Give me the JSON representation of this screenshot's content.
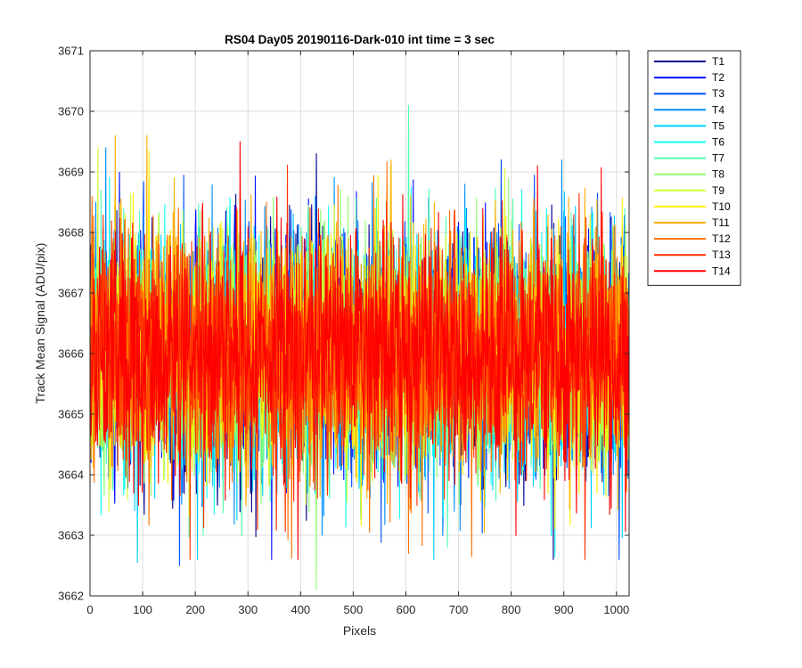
{
  "chart_data": {
    "type": "line",
    "title": "RS04 Day05 20190116-Dark-010 int time = 3 sec",
    "xlabel": "Pixels",
    "ylabel": "Track Mean Signal (ADU/pix)",
    "xlim": [
      0,
      1024
    ],
    "ylim": [
      3662,
      3671
    ],
    "xticks": [
      0,
      100,
      200,
      300,
      400,
      500,
      600,
      700,
      800,
      900,
      1000
    ],
    "yticks": [
      3662,
      3663,
      3664,
      3665,
      3666,
      3667,
      3668,
      3669,
      3670,
      3671
    ],
    "grid": true,
    "legend_position": "outside-top-right",
    "points_per_series": 1024,
    "series_statistics": {
      "mean_approx": 3666,
      "typical_min": 3663.5,
      "typical_max": 3668.5
    },
    "series": [
      {
        "name": "T1",
        "color": "#00008f",
        "noted_extremes": [
          {
            "x": 430,
            "y": 3669.3
          },
          {
            "x": 880,
            "y": 3662.6
          }
        ]
      },
      {
        "name": "T2",
        "color": "#0010ff",
        "noted_extremes": [
          {
            "x": 345,
            "y": 3662.6
          }
        ]
      },
      {
        "name": "T3",
        "color": "#0050ff",
        "noted_extremes": [
          {
            "x": 170,
            "y": 3662.5
          },
          {
            "x": 1005,
            "y": 3662.6
          }
        ]
      },
      {
        "name": "T4",
        "color": "#0090ff",
        "noted_extremes": [
          {
            "x": 30,
            "y": 3669.4
          }
        ]
      },
      {
        "name": "T5",
        "color": "#00cfff",
        "noted_extremes": [
          {
            "x": 90,
            "y": 3662.55
          }
        ]
      },
      {
        "name": "T6",
        "color": "#10ffef",
        "noted_extremes": []
      },
      {
        "name": "T7",
        "color": "#50ffaf",
        "noted_extremes": [
          {
            "x": 605,
            "y": 3670.1
          }
        ]
      },
      {
        "name": "T8",
        "color": "#8fff70",
        "noted_extremes": [
          {
            "x": 430,
            "y": 3662.1
          }
        ]
      },
      {
        "name": "T9",
        "color": "#cfff30",
        "noted_extremes": [
          {
            "x": 15,
            "y": 3669.4
          }
        ]
      },
      {
        "name": "T10",
        "color": "#ffef00",
        "noted_extremes": [
          {
            "x": 112,
            "y": 3669.35
          }
        ]
      },
      {
        "name": "T11",
        "color": "#ffaf00",
        "noted_extremes": [
          {
            "x": 108,
            "y": 3669.6
          },
          {
            "x": 48,
            "y": 3669.6
          }
        ]
      },
      {
        "name": "T12",
        "color": "#ff7000",
        "noted_extremes": [
          {
            "x": 605,
            "y": 3662.7
          },
          {
            "x": 725,
            "y": 3662.65
          }
        ]
      },
      {
        "name": "T13",
        "color": "#ff3000",
        "noted_extremes": []
      },
      {
        "name": "T14",
        "color": "#ff0000",
        "noted_extremes": [
          {
            "x": 285,
            "y": 3669.5
          },
          {
            "x": 850,
            "y": 3669.1
          }
        ]
      }
    ]
  }
}
